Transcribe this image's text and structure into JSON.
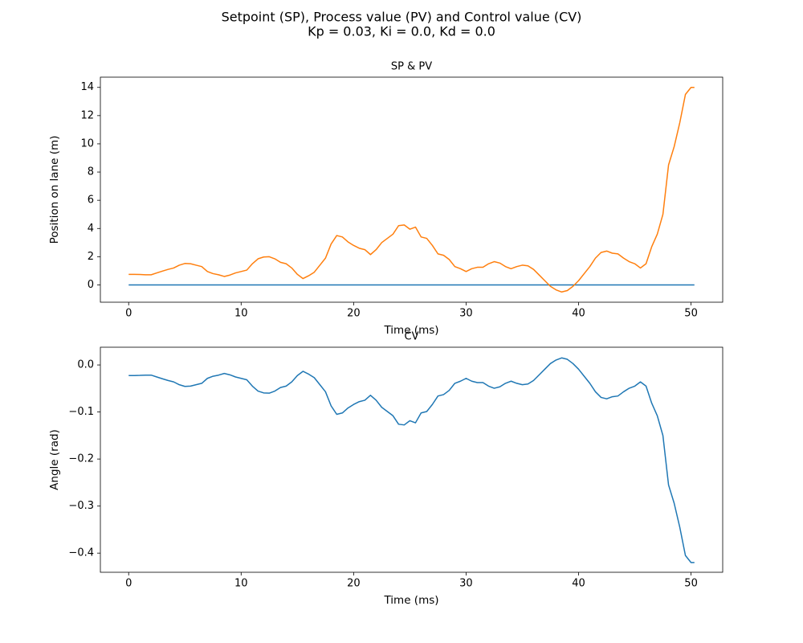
{
  "title": "Setpoint (SP), Process value (PV) and Control value (CV)",
  "subtitle": "Kp = 0.03, Ki = 0.0, Kd = 0.0",
  "chart_data": [
    {
      "type": "line",
      "title": "SP & PV",
      "x_label": "Time (ms)",
      "y_label": "Position on lane (m)",
      "x": [
        0,
        0.5,
        1,
        1.5,
        2,
        2.5,
        3,
        3.5,
        4,
        4.5,
        5,
        5.5,
        6,
        6.5,
        7,
        7.5,
        8,
        8.5,
        9,
        9.5,
        10,
        10.5,
        11,
        11.5,
        12,
        12.5,
        13,
        13.5,
        14,
        14.5,
        15,
        15.5,
        16,
        16.5,
        17,
        17.5,
        18,
        18.5,
        19,
        19.5,
        20,
        20.5,
        21,
        21.5,
        22,
        22.5,
        23,
        23.5,
        24,
        24.5,
        25,
        25.5,
        26,
        26.5,
        27,
        27.5,
        28,
        28.5,
        29,
        29.5,
        30,
        30.5,
        31,
        31.5,
        32,
        32.5,
        33,
        33.5,
        34,
        34.5,
        35,
        35.5,
        36,
        36.5,
        37,
        37.5,
        38,
        38.5,
        39,
        39.5,
        40,
        40.5,
        41,
        41.5,
        42,
        42.5,
        43,
        43.5,
        44,
        44.5,
        45,
        45.5,
        46,
        46.5,
        47,
        47.5,
        48,
        48.5,
        49,
        49.5,
        50,
        50.3
      ],
      "series": [
        {
          "name": "SP",
          "color": "#1f77b4",
          "values": [
            0,
            0,
            0,
            0,
            0,
            0,
            0,
            0,
            0,
            0,
            0,
            0,
            0,
            0,
            0,
            0,
            0,
            0,
            0,
            0,
            0,
            0,
            0,
            0,
            0,
            0,
            0,
            0,
            0,
            0,
            0,
            0,
            0,
            0,
            0,
            0,
            0,
            0,
            0,
            0,
            0,
            0,
            0,
            0,
            0,
            0,
            0,
            0,
            0,
            0,
            0,
            0,
            0,
            0,
            0,
            0,
            0,
            0,
            0,
            0,
            0,
            0,
            0,
            0,
            0,
            0,
            0,
            0,
            0,
            0,
            0,
            0,
            0,
            0,
            0,
            0,
            0,
            0,
            0,
            0,
            0,
            0,
            0,
            0,
            0,
            0,
            0,
            0,
            0,
            0,
            0,
            0,
            0,
            0,
            0,
            0,
            0,
            0,
            0,
            0,
            0,
            0
          ]
        },
        {
          "name": "PV",
          "color": "#ff7f0e",
          "values": [
            0.75,
            0.75,
            0.74,
            0.72,
            0.72,
            0.85,
            0.98,
            1.1,
            1.2,
            1.4,
            1.52,
            1.5,
            1.4,
            1.3,
            0.95,
            0.8,
            0.72,
            0.6,
            0.7,
            0.85,
            0.95,
            1.05,
            1.5,
            1.85,
            1.98,
            2.0,
            1.85,
            1.6,
            1.5,
            1.2,
            0.75,
            0.45,
            0.65,
            0.9,
            1.4,
            1.9,
            2.9,
            3.5,
            3.4,
            3.05,
            2.8,
            2.6,
            2.5,
            2.15,
            2.5,
            3.0,
            3.3,
            3.6,
            4.2,
            4.25,
            3.95,
            4.1,
            3.4,
            3.3,
            2.8,
            2.2,
            2.1,
            1.8,
            1.3,
            1.15,
            0.95,
            1.15,
            1.25,
            1.25,
            1.5,
            1.65,
            1.55,
            1.3,
            1.15,
            1.3,
            1.4,
            1.35,
            1.1,
            0.7,
            0.3,
            -0.1,
            -0.35,
            -0.5,
            -0.4,
            -0.1,
            0.3,
            0.8,
            1.3,
            1.9,
            2.3,
            2.4,
            2.25,
            2.2,
            1.9,
            1.65,
            1.5,
            1.2,
            1.5,
            2.7,
            3.6,
            5.0,
            8.5,
            9.8,
            11.5,
            13.5,
            14.0,
            14.0
          ]
        }
      ],
      "xlim": [
        -2.515,
        52.815
      ],
      "xticks": [
        0,
        10,
        20,
        30,
        40,
        50
      ],
      "ylim": [
        -1.225,
        14.725
      ],
      "yticks": [
        0,
        2,
        4,
        6,
        8,
        10,
        12,
        14
      ]
    },
    {
      "type": "line",
      "title": "CV",
      "x_label": "Time (ms)",
      "y_label": "Angle (rad)",
      "x": [
        0,
        0.5,
        1,
        1.5,
        2,
        2.5,
        3,
        3.5,
        4,
        4.5,
        5,
        5.5,
        6,
        6.5,
        7,
        7.5,
        8,
        8.5,
        9,
        9.5,
        10,
        10.5,
        11,
        11.5,
        12,
        12.5,
        13,
        13.5,
        14,
        14.5,
        15,
        15.5,
        16,
        16.5,
        17,
        17.5,
        18,
        18.5,
        19,
        19.5,
        20,
        20.5,
        21,
        21.5,
        22,
        22.5,
        23,
        23.5,
        24,
        24.5,
        25,
        25.5,
        26,
        26.5,
        27,
        27.5,
        28,
        28.5,
        29,
        29.5,
        30,
        30.5,
        31,
        31.5,
        32,
        32.5,
        33,
        33.5,
        34,
        34.5,
        35,
        35.5,
        36,
        36.5,
        37,
        37.5,
        38,
        38.5,
        39,
        39.5,
        40,
        40.5,
        41,
        41.5,
        42,
        42.5,
        43,
        43.5,
        44,
        44.5,
        45,
        45.5,
        46,
        46.5,
        47,
        47.5,
        48,
        48.5,
        49,
        49.5,
        50,
        50.3
      ],
      "series": [
        {
          "name": "CV",
          "color": "#1f77b4",
          "values": [
            -0.0225,
            -0.0225,
            -0.0222,
            -0.0216,
            -0.0216,
            -0.0255,
            -0.0294,
            -0.033,
            -0.036,
            -0.042,
            -0.0456,
            -0.045,
            -0.042,
            -0.039,
            -0.0285,
            -0.024,
            -0.0216,
            -0.018,
            -0.021,
            -0.0255,
            -0.0285,
            -0.0315,
            -0.045,
            -0.0555,
            -0.0594,
            -0.06,
            -0.0555,
            -0.048,
            -0.045,
            -0.036,
            -0.0225,
            -0.0135,
            -0.0195,
            -0.027,
            -0.042,
            -0.057,
            -0.087,
            -0.105,
            -0.102,
            -0.0915,
            -0.084,
            -0.078,
            -0.075,
            -0.0645,
            -0.075,
            -0.09,
            -0.099,
            -0.108,
            -0.126,
            -0.1275,
            -0.1185,
            -0.123,
            -0.102,
            -0.099,
            -0.084,
            -0.066,
            -0.063,
            -0.054,
            -0.039,
            -0.0345,
            -0.0285,
            -0.0345,
            -0.0375,
            -0.0375,
            -0.045,
            -0.0495,
            -0.0465,
            -0.039,
            -0.0345,
            -0.039,
            -0.042,
            -0.0405,
            -0.033,
            -0.021,
            -0.009,
            0.003,
            0.0105,
            0.015,
            0.012,
            0.003,
            -0.009,
            -0.024,
            -0.039,
            -0.057,
            -0.069,
            -0.072,
            -0.0675,
            -0.066,
            -0.057,
            -0.0495,
            -0.045,
            -0.036,
            -0.045,
            -0.081,
            -0.108,
            -0.15,
            -0.255,
            -0.294,
            -0.345,
            -0.405,
            -0.42,
            -0.42
          ]
        }
      ],
      "xlim": [
        -2.515,
        52.815
      ],
      "xticks": [
        0,
        10,
        20,
        30,
        40,
        50
      ],
      "ylim": [
        -0.4407,
        0.0377
      ],
      "yticks": [
        {
          "value": 0,
          "label": "0.0"
        },
        {
          "value": -0.1,
          "label": "−0.1"
        },
        {
          "value": -0.2,
          "label": "−0.2"
        },
        {
          "value": -0.3,
          "label": "−0.3"
        },
        {
          "value": -0.4,
          "label": "−0.4"
        }
      ]
    }
  ]
}
